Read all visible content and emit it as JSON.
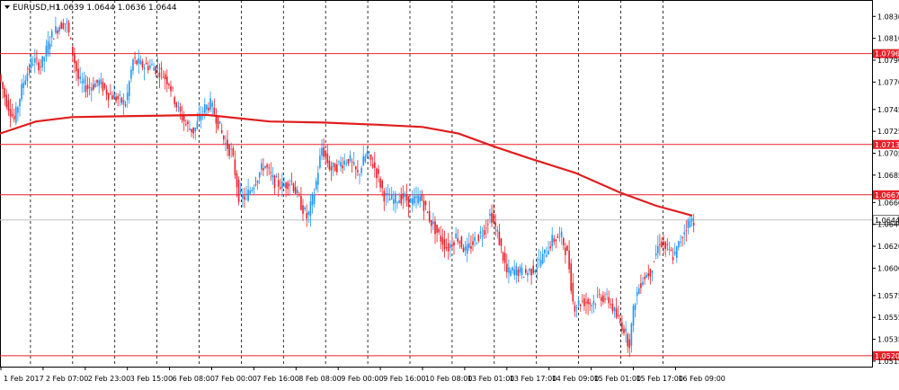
{
  "header": {
    "symbol": "EURUSD,H1",
    "ohlc": "1.0639 1.0644 1.0636 1.0644"
  },
  "colors": {
    "background": "#ffffff",
    "bull": "#2196f3",
    "bear": "#e8202a",
    "ma": "#e11d1d",
    "level_line": "#e8202a",
    "grid": "#000000",
    "axis_text": "#000000"
  },
  "chart_data": {
    "type": "candlestick",
    "title": "EURUSD,H1",
    "ylim": [
      1.051,
      1.0845
    ],
    "y_ticks": [
      "1.0830",
      "1.0810",
      "1.0790",
      "1.0770",
      "1.0745",
      "1.0725",
      "1.0705",
      "1.0685",
      "1.0660",
      "1.0640",
      "1.0620",
      "1.0600",
      "1.0575",
      "1.0555",
      "1.0535",
      "1.0515"
    ],
    "x_ticks": [
      "1 Feb 2017",
      "2 Feb 07:00",
      "2 Feb 23:00",
      "3 Feb 15:00",
      "6 Feb 08:00",
      "7 Feb 00:00",
      "7 Feb 16:00",
      "8 Feb 08:00",
      "9 Feb 00:00",
      "9 Feb 16:00",
      "10 Feb 08:00",
      "13 Feb 01:00",
      "13 Feb 17:00",
      "14 Feb 09:00",
      "15 Feb 01:00",
      "15 Feb 17:00",
      "16 Feb 09:00"
    ],
    "grid": "vertical dashed",
    "levels": [
      {
        "label": "1.0796",
        "value": 1.0796
      },
      {
        "label": "1.0713",
        "value": 1.0713
      },
      {
        "label": "1.0667",
        "value": 1.0667
      },
      {
        "label": "1.0520",
        "value": 1.052
      }
    ],
    "current_price": {
      "label": "1.0644",
      "value": 1.0644
    },
    "moving_average": [
      [
        0,
        1.0723
      ],
      [
        40,
        1.0734
      ],
      [
        80,
        1.0738
      ],
      [
        150,
        1.0739
      ],
      [
        230,
        1.074
      ],
      [
        300,
        1.0734
      ],
      [
        360,
        1.0733
      ],
      [
        420,
        1.0731
      ],
      [
        470,
        1.0729
      ],
      [
        510,
        1.0723
      ],
      [
        550,
        1.0711
      ],
      [
        590,
        1.07
      ],
      [
        640,
        1.0687
      ],
      [
        690,
        1.0669
      ],
      [
        730,
        1.0657
      ],
      [
        770,
        1.0648
      ]
    ],
    "price_path": [
      [
        0,
        1.078
      ],
      [
        8,
        1.0755
      ],
      [
        18,
        1.0735
      ],
      [
        28,
        1.077
      ],
      [
        38,
        1.079
      ],
      [
        48,
        1.0785
      ],
      [
        58,
        1.081
      ],
      [
        68,
        1.0822
      ],
      [
        76,
        1.0825
      ],
      [
        82,
        1.08
      ],
      [
        90,
        1.077
      ],
      [
        100,
        1.0765
      ],
      [
        112,
        1.077
      ],
      [
        122,
        1.076
      ],
      [
        132,
        1.0755
      ],
      [
        142,
        1.075
      ],
      [
        150,
        1.079
      ],
      [
        160,
        1.0785
      ],
      [
        170,
        1.0785
      ],
      [
        180,
        1.078
      ],
      [
        190,
        1.077
      ],
      [
        200,
        1.0745
      ],
      [
        210,
        1.073
      ],
      [
        218,
        1.0725
      ],
      [
        228,
        1.0745
      ],
      [
        236,
        1.075
      ],
      [
        244,
        1.0735
      ],
      [
        252,
        1.0715
      ],
      [
        260,
        1.0705
      ],
      [
        268,
        1.0665
      ],
      [
        276,
        1.0665
      ],
      [
        286,
        1.068
      ],
      [
        296,
        1.0695
      ],
      [
        306,
        1.068
      ],
      [
        316,
        1.0675
      ],
      [
        326,
        1.068
      ],
      [
        336,
        1.066
      ],
      [
        344,
        1.0645
      ],
      [
        352,
        1.067
      ],
      [
        360,
        1.071
      ],
      [
        370,
        1.069
      ],
      [
        380,
        1.0695
      ],
      [
        390,
        1.07
      ],
      [
        400,
        1.0685
      ],
      [
        410,
        1.0705
      ],
      [
        420,
        1.069
      ],
      [
        430,
        1.0665
      ],
      [
        440,
        1.0662
      ],
      [
        450,
        1.0665
      ],
      [
        460,
        1.066
      ],
      [
        470,
        1.0665
      ],
      [
        480,
        1.0645
      ],
      [
        490,
        1.063
      ],
      [
        500,
        1.0618
      ],
      [
        510,
        1.063
      ],
      [
        520,
        1.0615
      ],
      [
        530,
        1.0625
      ],
      [
        540,
        1.0635
      ],
      [
        548,
        1.065
      ],
      [
        556,
        1.063
      ],
      [
        566,
        1.0595
      ],
      [
        576,
        1.0598
      ],
      [
        586,
        1.0595
      ],
      [
        596,
        1.06
      ],
      [
        606,
        1.061
      ],
      [
        616,
        1.0625
      ],
      [
        626,
        1.063
      ],
      [
        634,
        1.061
      ],
      [
        640,
        1.0565
      ],
      [
        650,
        1.057
      ],
      [
        660,
        1.0568
      ],
      [
        670,
        1.0575
      ],
      [
        680,
        1.057
      ],
      [
        688,
        1.0555
      ],
      [
        696,
        1.0545
      ],
      [
        702,
        1.053
      ],
      [
        708,
        1.057
      ],
      [
        716,
        1.059
      ],
      [
        726,
        1.0598
      ],
      [
        736,
        1.0625
      ],
      [
        746,
        1.0615
      ],
      [
        752,
        1.061
      ],
      [
        760,
        1.0628
      ],
      [
        766,
        1.064
      ],
      [
        772,
        1.0644
      ]
    ]
  }
}
